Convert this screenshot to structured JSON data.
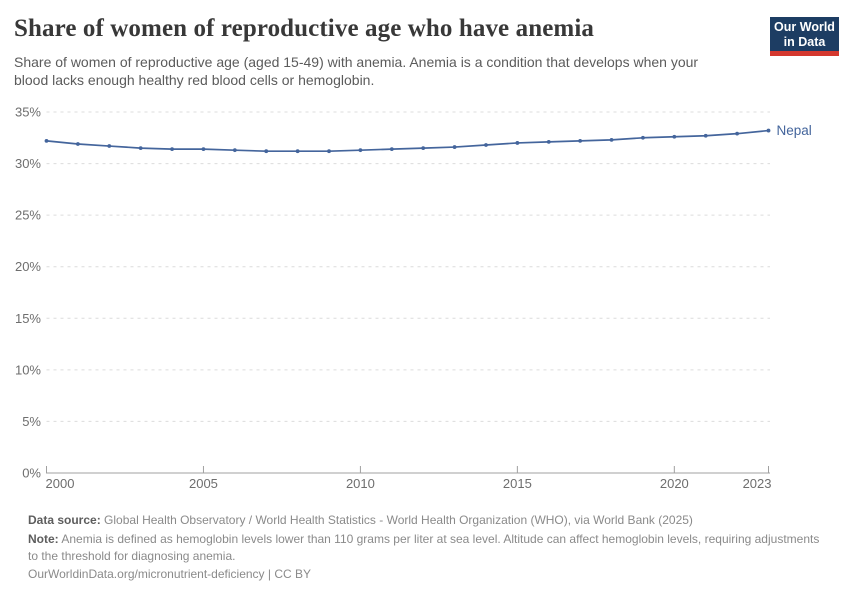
{
  "header": {
    "title": "Share of women of reproductive age who have anemia",
    "subtitle": "Share of women of reproductive age (aged 15-49) with anemia. Anemia is a condition that develops when your blood lacks enough healthy red blood cells or hemoglobin.",
    "subtitle_lines": [
      "Share of women of reproductive age (aged 15-49) with anemia. Anemia is a condition that develops when your",
      "blood lacks enough healthy red blood cells or hemoglobin."
    ]
  },
  "logo": {
    "line1": "Our World",
    "line2": "in Data"
  },
  "chart_data": {
    "type": "line",
    "title": "Share of women of reproductive age who have anemia",
    "xlabel": "",
    "ylabel": "",
    "ylim": [
      0,
      35
    ],
    "grid": "horizontal-dashed",
    "legend_position": "end-of-line",
    "x": [
      2000,
      2001,
      2002,
      2003,
      2004,
      2005,
      2006,
      2007,
      2008,
      2009,
      2010,
      2011,
      2012,
      2013,
      2014,
      2015,
      2016,
      2017,
      2018,
      2019,
      2020,
      2021,
      2022,
      2023
    ],
    "series": [
      {
        "name": "Nepal",
        "color": "#44659c",
        "values": [
          32.2,
          31.9,
          31.7,
          31.5,
          31.4,
          31.4,
          31.3,
          31.2,
          31.2,
          31.2,
          31.3,
          31.4,
          31.5,
          31.6,
          31.8,
          32.0,
          32.1,
          32.2,
          32.3,
          32.5,
          32.6,
          32.7,
          32.9,
          33.2
        ]
      }
    ],
    "yticks": [
      0,
      5,
      10,
      15,
      20,
      25,
      30,
      35
    ],
    "ytick_labels": [
      "0%",
      "5%",
      "10%",
      "15%",
      "20%",
      "25%",
      "30%",
      "35%"
    ],
    "xticks": [
      2000,
      2005,
      2010,
      2015,
      2020,
      2023
    ],
    "xtick_labels": [
      "2000",
      "2005",
      "2010",
      "2015",
      "2020",
      "2023"
    ]
  },
  "footer": {
    "data_source_label": "Data source:",
    "data_source": "Global Health Observatory / World Health Statistics - World Health Organization (WHO), via World Bank (2025)",
    "note_label": "Note:",
    "note": "Anemia is defined as hemoglobin levels lower than 110 grams per liter at sea level. Altitude can affect hemoglobin levels, requiring adjustments to the threshold for diagnosing anemia.",
    "citation": "OurWorldinData.org/micronutrient-deficiency | CC BY"
  },
  "colors": {
    "line": "#44659c",
    "grid": "#dcdcdc",
    "axis": "#a0a0a0",
    "tick_text": "#6e6e6e",
    "title_text": "#383838",
    "subtitle_text": "#5b5b5b",
    "logo_bg": "#1d3d63",
    "logo_stripe": "#d4382e"
  }
}
